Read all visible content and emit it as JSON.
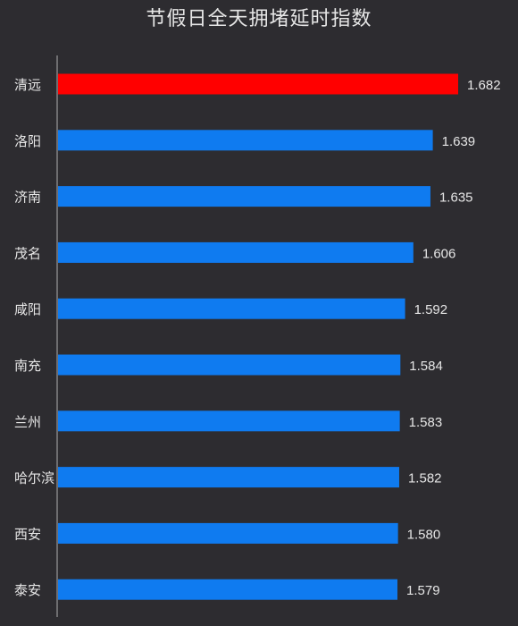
{
  "chart_data": {
    "type": "bar",
    "orientation": "horizontal",
    "title": "节假日全天拥堵延时指数",
    "categories": [
      "清远",
      "洛阳",
      "济南",
      "茂名",
      "咸阳",
      "南充",
      "兰州",
      "哈尔滨",
      "西安",
      "泰安"
    ],
    "values": [
      1.682,
      1.639,
      1.635,
      1.606,
      1.592,
      1.584,
      1.583,
      1.582,
      1.58,
      1.579
    ],
    "value_labels": [
      "1.682",
      "1.639",
      "1.635",
      "1.606",
      "1.592",
      "1.584",
      "1.583",
      "1.582",
      "1.580",
      "1.579"
    ],
    "highlight_index": 0,
    "grid": false,
    "legend": "none",
    "colors": {
      "background": "#2d2c30",
      "bar": "#0f7bf0",
      "highlight_bar": "#ff0000",
      "text": "#e6e6e6",
      "axis": "#9a9a9a"
    }
  }
}
